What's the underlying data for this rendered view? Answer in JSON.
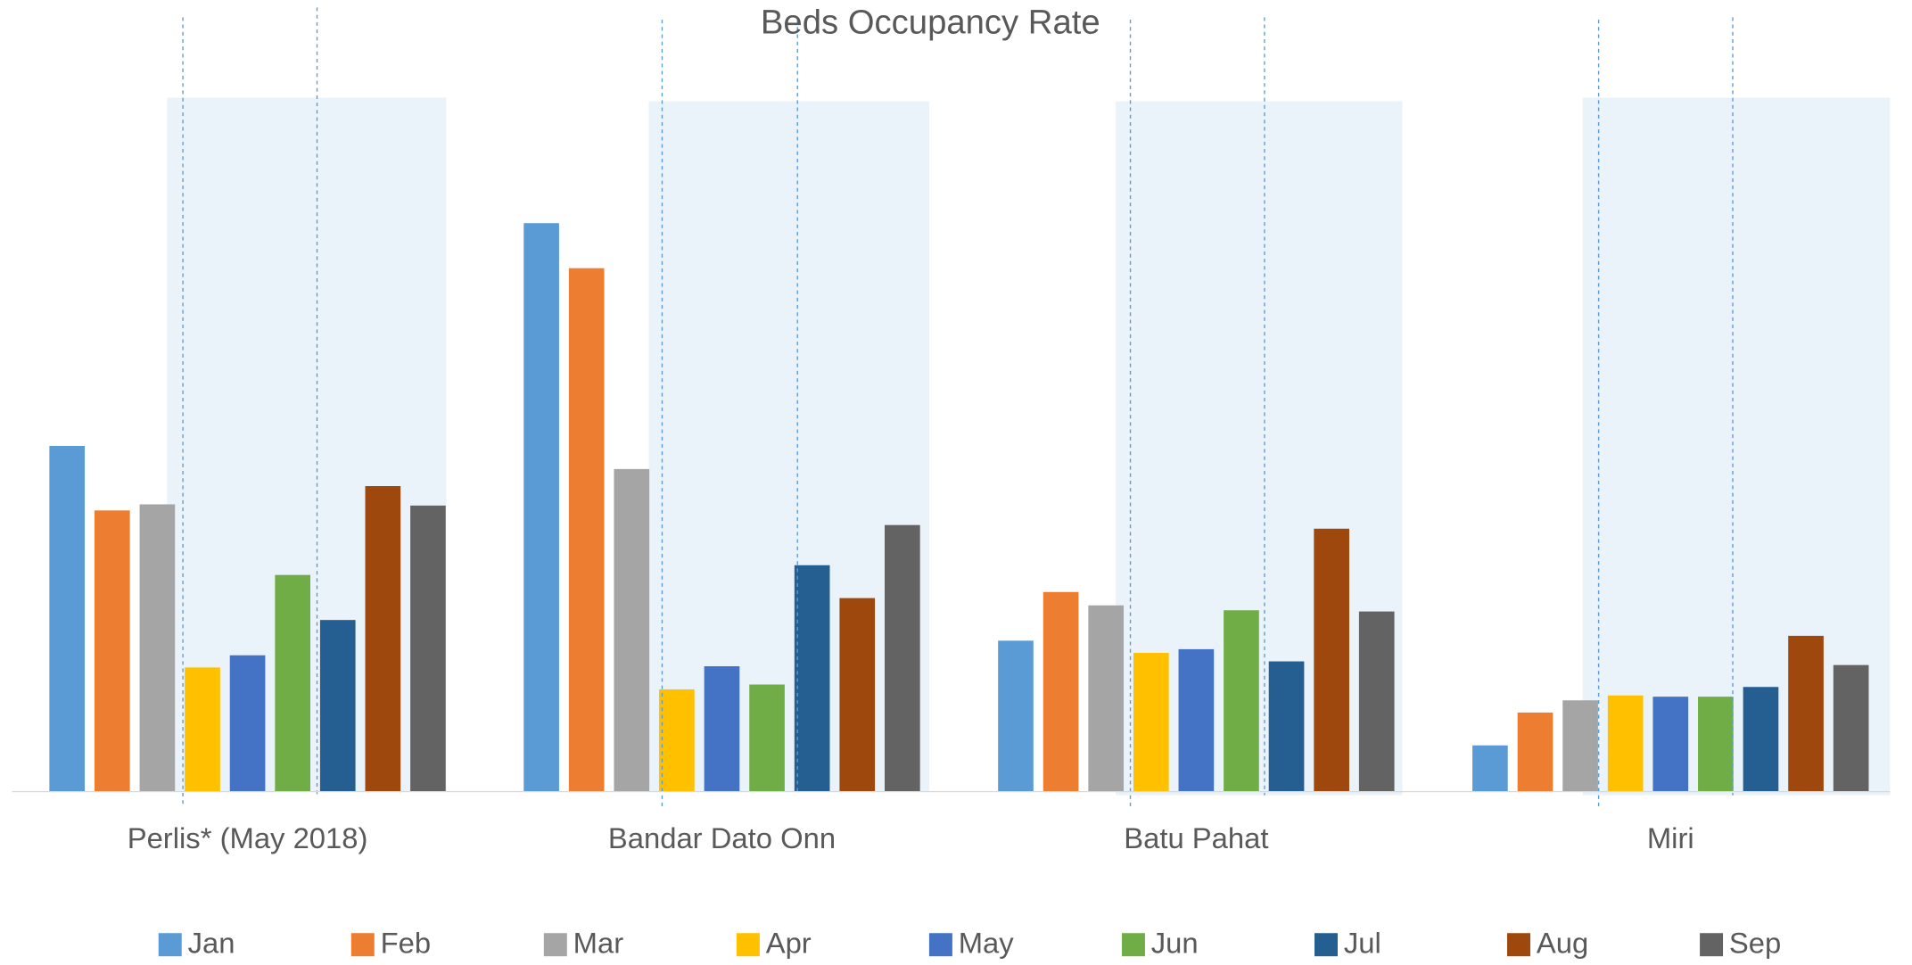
{
  "chart_data": {
    "type": "bar",
    "title": "Beds Occupancy Rate",
    "categories": [
      "Perlis* (May 2018)",
      "Bandar Dato Onn",
      "Batu Pahat",
      "Miri"
    ],
    "series": [
      {
        "name": "Jan",
        "color": "#5b9bd5",
        "values": [
          284,
          467,
          124,
          38
        ]
      },
      {
        "name": "Feb",
        "color": "#ed7d31",
        "values": [
          231,
          430,
          164,
          65
        ]
      },
      {
        "name": "Mar",
        "color": "#a5a5a5",
        "values": [
          236,
          265,
          153,
          75
        ]
      },
      {
        "name": "Apr",
        "color": "#ffc000",
        "values": [
          102,
          84,
          114,
          79
        ]
      },
      {
        "name": "May",
        "color": "#4472c4",
        "values": [
          112,
          103,
          117,
          78
        ]
      },
      {
        "name": "Jun",
        "color": "#70ad47",
        "values": [
          178,
          88,
          149,
          78
        ]
      },
      {
        "name": "Jul",
        "color": "#255e91",
        "values": [
          141,
          186,
          107,
          86
        ]
      },
      {
        "name": "Aug",
        "color": "#9e480e",
        "values": [
          251,
          159,
          216,
          128
        ]
      },
      {
        "name": "Sep",
        "color": "#636363",
        "values": [
          235,
          219,
          148,
          104
        ]
      }
    ],
    "ylim": [
      0,
      570
    ],
    "legend": "bottom"
  }
}
